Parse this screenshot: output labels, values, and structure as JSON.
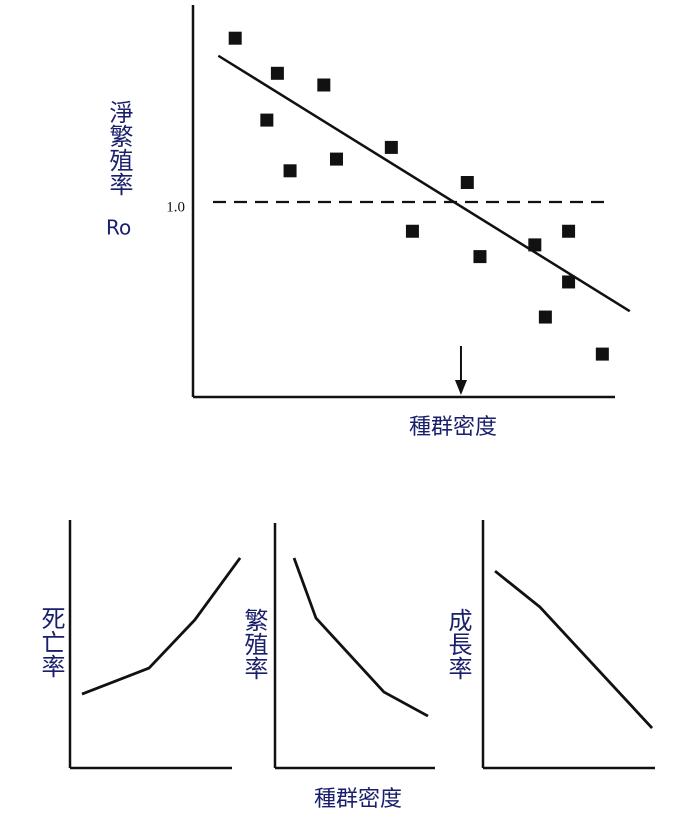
{
  "chart_data": [
    {
      "type": "scatter",
      "ylabel": "淨繁殖率",
      "ylabel_symbol": "Ro",
      "xlabel": "種群密度",
      "x": [
        1.0,
        2.0,
        1.75,
        2.3,
        3.1,
        3.4,
        4.7,
        5.2,
        6.5,
        6.8,
        8.1,
        8.35,
        8.9,
        8.9,
        9.7
      ],
      "y": [
        1.84,
        1.66,
        1.42,
        1.16,
        1.6,
        1.22,
        1.28,
        0.85,
        1.1,
        0.72,
        0.78,
        0.41,
        0.85,
        0.59,
        0.22
      ],
      "trend": {
        "x": [
          0.6,
          10.35
        ],
        "y": [
          1.75,
          0.44
        ]
      },
      "marker_x": 6.35,
      "xlim": [
        0,
        10
      ],
      "ylim": [
        0,
        2
      ],
      "yticks": [
        {
          "value": 1,
          "label": "1.0"
        }
      ],
      "color": "#111111"
    },
    {
      "type": "line",
      "ylabel": "死亡率",
      "x": [
        0.74,
        4.88,
        7.7,
        10.5
      ],
      "values": [
        2.98,
        4.03,
        5.97,
        8.47
      ],
      "xlim": [
        0,
        10
      ],
      "ylim": [
        0,
        10
      ],
      "color": "#111111"
    },
    {
      "type": "line",
      "ylabel": "繁殖率",
      "x": [
        1.19,
        2.56,
        6.81,
        9.56
      ],
      "values": [
        8.57,
        6.12,
        3.1,
        2.12
      ],
      "xlim": [
        0,
        10
      ],
      "ylim": [
        0,
        10
      ],
      "color": "#111111"
    },
    {
      "type": "line",
      "ylabel": "成長率",
      "x": [
        0.7,
        3.31,
        9.83
      ],
      "values": [
        7.94,
        6.49,
        1.61
      ],
      "xlim": [
        0,
        10
      ],
      "ylim": [
        0,
        10
      ],
      "color": "#111111"
    }
  ],
  "shared_xlabel": "種群密度"
}
